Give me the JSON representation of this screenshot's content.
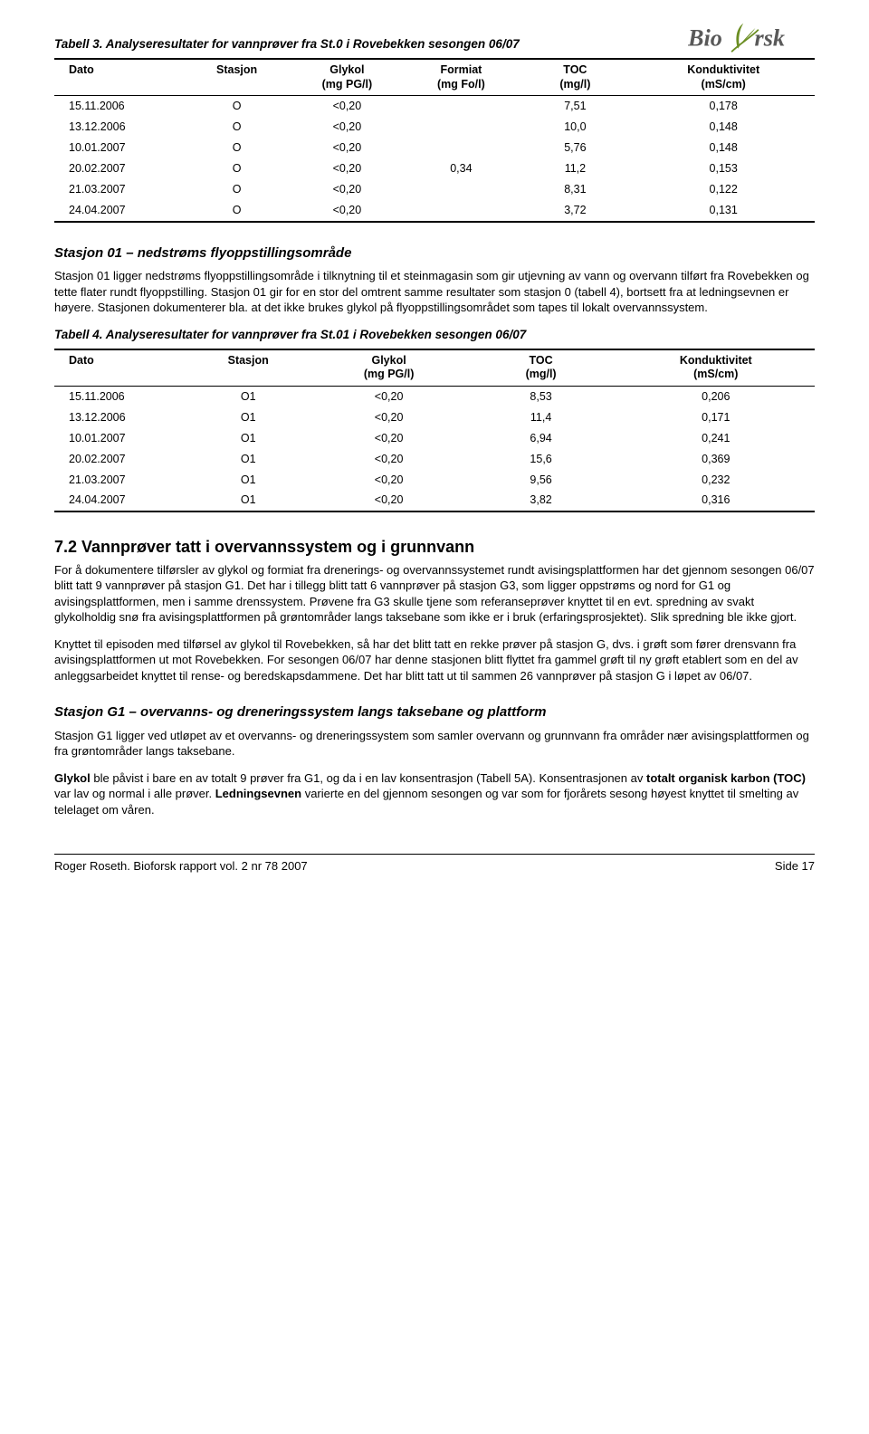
{
  "logo_text": "Bioforsk",
  "logo_color_text": "#595959",
  "logo_color_leaf": "#6b8e23",
  "table3": {
    "caption": "Tabell 3. Analyseresultater for vannprøver fra St.0 i Rovebekken sesongen 06/07",
    "headers": [
      "Dato",
      "Stasjon",
      "Glykol\n(mg PG/l)",
      "Formiat\n(mg Fo/l)",
      "TOC\n(mg/l)",
      "Konduktivitet\n(mS/cm)"
    ],
    "rows": [
      [
        "15.11.2006",
        "O",
        "<0,20",
        "",
        "7,51",
        "0,178"
      ],
      [
        "13.12.2006",
        "O",
        "<0,20",
        "",
        "10,0",
        "0,148"
      ],
      [
        "10.01.2007",
        "O",
        "<0,20",
        "",
        "5,76",
        "0,148"
      ],
      [
        "20.02.2007",
        "O",
        "<0,20",
        "0,34",
        "11,2",
        "0,153"
      ],
      [
        "21.03.2007",
        "O",
        "<0,20",
        "",
        "8,31",
        "0,122"
      ],
      [
        "24.04.2007",
        "O",
        "<0,20",
        "",
        "3,72",
        "0,131"
      ]
    ]
  },
  "station01": {
    "heading": "Stasjon 01 – nedstrøms flyoppstillingsområde",
    "paragraph": "Stasjon 01 ligger nedstrøms flyoppstillingsområde i tilknytning til et steinmagasin som gir utjevning av vann og overvann tilført fra Rovebekken og tette flater rundt flyoppstilling. Stasjon 01 gir for en stor del omtrent samme resultater som stasjon 0 (tabell 4), bortsett fra at ledningsevnen er høyere. Stasjonen dokumenterer bla. at det ikke brukes glykol på flyoppstillingsområdet som tapes til lokalt overvannssystem."
  },
  "table4": {
    "caption": "Tabell 4. Analyseresultater for vannprøver fra St.01 i Rovebekken sesongen 06/07",
    "headers": [
      "Dato",
      "Stasjon",
      "Glykol\n(mg PG/l)",
      "TOC\n(mg/l)",
      "Konduktivitet\n(mS/cm)"
    ],
    "rows": [
      [
        "15.11.2006",
        "O1",
        "<0,20",
        "8,53",
        "0,206"
      ],
      [
        "13.12.2006",
        "O1",
        "<0,20",
        "11,4",
        "0,171"
      ],
      [
        "10.01.2007",
        "O1",
        "<0,20",
        "6,94",
        "0,241"
      ],
      [
        "20.02.2007",
        "O1",
        "<0,20",
        "15,6",
        "0,369"
      ],
      [
        "21.03.2007",
        "O1",
        "<0,20",
        "9,56",
        "0,232"
      ],
      [
        "24.04.2007",
        "O1",
        "<0,20",
        "3,82",
        "0,316"
      ]
    ]
  },
  "section72": {
    "heading": "7.2   Vannprøver tatt i overvannssystem og i grunnvann",
    "para1": "For å dokumentere tilførsler av glykol og formiat fra drenerings- og overvannssystemet rundt avisingsplattformen har det gjennom sesongen 06/07 blitt tatt 9 vannprøver på stasjon G1. Det har i tillegg blitt tatt 6 vannprøver på stasjon G3, som ligger oppstrøms og nord for G1 og avisingsplattformen, men i samme drenssystem. Prøvene fra G3 skulle tjene som referanseprøver knyttet til en evt. spredning av svakt glykolholdig snø fra avisingsplattformen på grøntområder langs taksebane som ikke er i bruk (erfaringsprosjektet). Slik spredning ble ikke gjort.",
    "para2": "Knyttet til episoden med tilførsel av glykol til Rovebekken, så har det blitt tatt en rekke prøver på stasjon G, dvs. i grøft som fører drensvann fra avisingsplattformen ut mot Rovebekken. For sesongen 06/07 har denne stasjonen blitt flyttet fra gammel grøft til ny grøft etablert som en del av anleggsarbeidet knyttet til rense- og beredskapsdammene. Det har blitt tatt ut til sammen 26 vannprøver på stasjon G i løpet av 06/07."
  },
  "stationG1": {
    "heading": "Stasjon G1 – overvanns- og dreneringssystem langs taksebane og plattform",
    "para1": "Stasjon G1 ligger ved utløpet av et overvanns- og dreneringssystem som samler overvann og grunnvann fra områder nær avisingsplattformen og fra grøntområder langs taksebane.",
    "para2_pre": "Glykol",
    "para2_mid1": " ble påvist i bare en av totalt 9 prøver fra G1, og da i en lav konsentrasjon (Tabell 5A). Konsentrasjonen av ",
    "para2_bold2": "totalt organisk karbon (TOC)",
    "para2_mid2": " var lav og normal i alle prøver. ",
    "para2_bold3": "Ledningsevnen",
    "para2_post": " varierte en del gjennom sesongen og var som for fjorårets sesong høyest knyttet til smelting av telelaget om våren."
  },
  "footer": {
    "left": "Roger Roseth. Bioforsk rapport vol. 2 nr 78 2007",
    "right": "Side 17"
  }
}
